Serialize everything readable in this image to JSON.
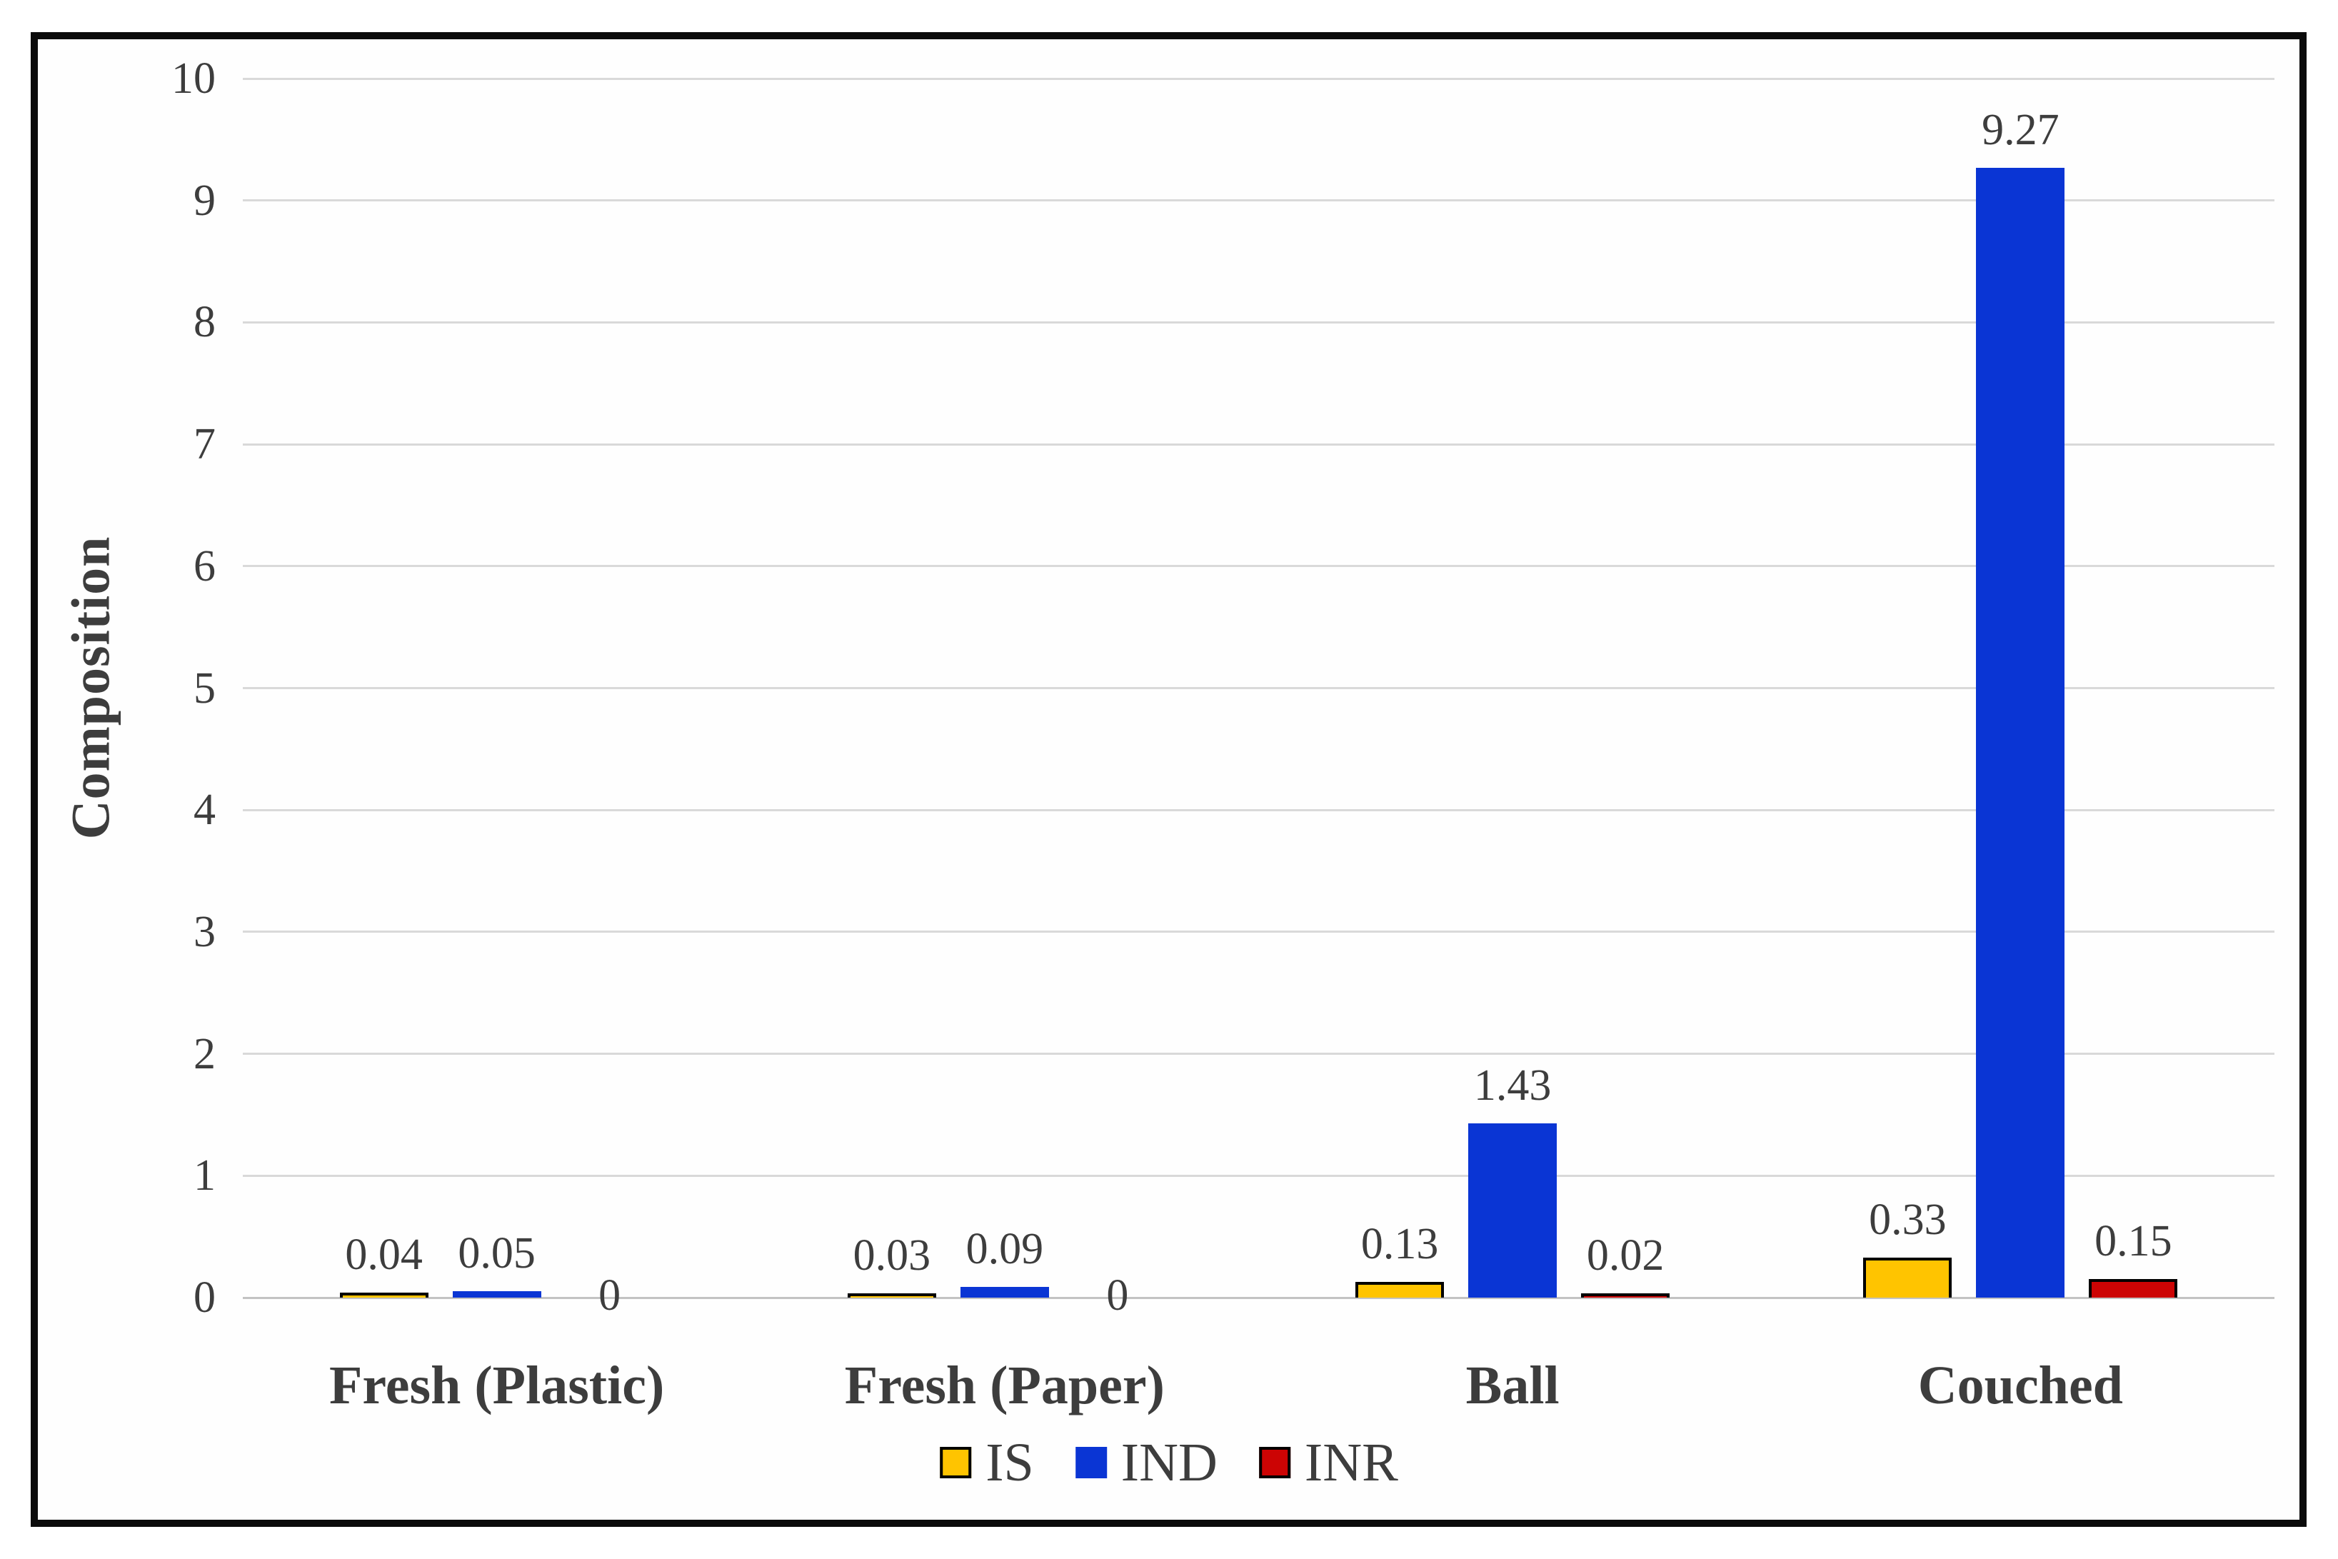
{
  "chart_data": {
    "type": "bar",
    "title": "",
    "xlabel": "",
    "ylabel": "Composition",
    "ylim": [
      0,
      10
    ],
    "ytick_step": 1,
    "yticks": [
      0,
      1,
      2,
      3,
      4,
      5,
      6,
      7,
      8,
      9,
      10
    ],
    "grid": true,
    "legend_position": "bottom-center",
    "categories": [
      "Fresh (Plastic)",
      "Fresh (Paper)",
      "Ball",
      "Couched"
    ],
    "series": [
      {
        "name": "IS",
        "color": "#ffc400",
        "border_color": "#000000",
        "values": [
          0.04,
          0.03,
          0.13,
          0.33
        ],
        "labels": [
          "0.04",
          "0.03",
          "0.13",
          "0.33"
        ]
      },
      {
        "name": "IND",
        "color": "#0a35d4",
        "border_color": "#0a35d4",
        "values": [
          0.05,
          0.09,
          1.43,
          9.27
        ],
        "labels": [
          "0.05",
          "0.09",
          "1.43",
          "9.27"
        ]
      },
      {
        "name": "INR",
        "color": "#cc0404",
        "border_color": "#000000",
        "values": [
          0,
          0,
          0.02,
          0.15
        ],
        "labels": [
          "0",
          "0",
          "0.02",
          "0.15"
        ]
      }
    ],
    "colors": {
      "text": "#3d3d3d",
      "gridline": "#d9d9d9",
      "axis_line": "#c3c3c3",
      "frame_border": "#0b0b0b"
    }
  }
}
